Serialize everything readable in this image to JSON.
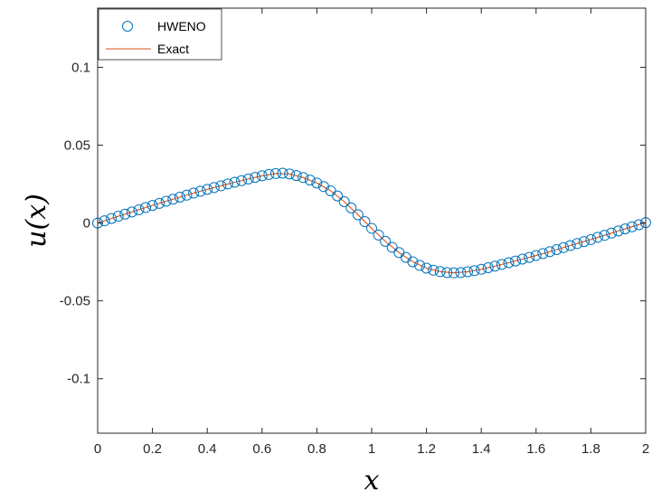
{
  "chart_data": {
    "type": "line",
    "xlabel": "x",
    "ylabel": "u(x)",
    "xlim": [
      0,
      2
    ],
    "ylim": [
      -0.135,
      0.138
    ],
    "grid": false,
    "legend_position": "top-left",
    "x_ticks": [
      0,
      0.2,
      0.4,
      0.6,
      0.8,
      1,
      1.2,
      1.4,
      1.6,
      1.8,
      2
    ],
    "x_tick_labels": [
      "0",
      "0.2",
      "0.4",
      "0.6",
      "0.8",
      "1",
      "1.2",
      "1.4",
      "1.6",
      "1.8",
      "2"
    ],
    "y_ticks": [
      0.1,
      0.05,
      0,
      -0.05,
      -0.1
    ],
    "y_tick_labels": [
      "0.1",
      "0.05",
      "0",
      "-0.05",
      "-0.1"
    ],
    "series": [
      {
        "name": "HWENO",
        "style": "markers",
        "marker": "circle",
        "color": "#0072BD",
        "x": [
          0,
          0.025,
          0.05,
          0.075,
          0.1,
          0.125,
          0.15,
          0.175,
          0.2,
          0.225,
          0.25,
          0.275,
          0.3,
          0.325,
          0.35,
          0.375,
          0.4,
          0.425,
          0.45,
          0.475,
          0.5,
          0.525,
          0.55,
          0.575,
          0.6,
          0.625,
          0.65,
          0.675,
          0.7,
          0.725,
          0.75,
          0.775,
          0.8,
          0.825,
          0.85,
          0.875,
          0.9,
          0.925,
          0.95,
          0.975,
          1,
          1.025,
          1.05,
          1.075,
          1.1,
          1.125,
          1.15,
          1.175,
          1.2,
          1.225,
          1.25,
          1.275,
          1.3,
          1.325,
          1.35,
          1.375,
          1.4,
          1.425,
          1.45,
          1.475,
          1.5,
          1.525,
          1.55,
          1.575,
          1.6,
          1.625,
          1.65,
          1.675,
          1.7,
          1.725,
          1.75,
          1.775,
          1.8,
          1.825,
          1.85,
          1.875,
          1.9,
          1.925,
          1.95,
          1.975,
          2
        ],
        "y": [
          0,
          0.0014,
          0.0029,
          0.0043,
          0.0057,
          0.0071,
          0.0085,
          0.0099,
          0.0113,
          0.0126,
          0.014,
          0.0153,
          0.0166,
          0.0179,
          0.0192,
          0.0204,
          0.0216,
          0.0228,
          0.0239,
          0.0251,
          0.0262,
          0.0272,
          0.0283,
          0.0293,
          0.0303,
          0.0312,
          0.0318,
          0.032,
          0.0315,
          0.0305,
          0.0292,
          0.0276,
          0.0257,
          0.0234,
          0.0207,
          0.0174,
          0.0137,
          0.0097,
          0.0053,
          0.0009,
          -0.0034,
          -0.0077,
          -0.0118,
          -0.0156,
          -0.019,
          -0.0221,
          -0.0249,
          -0.0272,
          -0.029,
          -0.0303,
          -0.0312,
          -0.0318,
          -0.032,
          -0.0318,
          -0.0313,
          -0.0306,
          -0.0297,
          -0.0287,
          -0.0277,
          -0.0266,
          -0.0255,
          -0.0244,
          -0.0232,
          -0.0221,
          -0.0209,
          -0.0196,
          -0.0184,
          -0.0171,
          -0.0158,
          -0.0145,
          -0.0132,
          -0.0119,
          -0.0106,
          -0.0092,
          -0.0079,
          -0.0065,
          -0.0051,
          -0.0038,
          -0.0024,
          -0.0011,
          0.0003
        ]
      },
      {
        "name": "Exact",
        "style": "line",
        "color": "#D95319",
        "x": [
          0,
          0.05,
          0.1,
          0.15,
          0.2,
          0.25,
          0.3,
          0.35,
          0.4,
          0.45,
          0.5,
          0.55,
          0.6,
          0.65,
          0.7,
          0.75,
          0.8,
          0.85,
          0.9,
          0.95,
          1,
          1.05,
          1.1,
          1.15,
          1.2,
          1.25,
          1.3,
          1.35,
          1.4,
          1.45,
          1.5,
          1.55,
          1.6,
          1.65,
          1.7,
          1.75,
          1.8,
          1.85,
          1.9,
          1.95,
          2
        ],
        "y": [
          0,
          0.0029,
          0.0057,
          0.0085,
          0.0113,
          0.014,
          0.0166,
          0.0192,
          0.0216,
          0.0239,
          0.0262,
          0.0283,
          0.0303,
          0.0318,
          0.0315,
          0.0292,
          0.0257,
          0.0207,
          0.0137,
          0.0053,
          -0.0034,
          -0.0118,
          -0.019,
          -0.0249,
          -0.029,
          -0.0312,
          -0.032,
          -0.0313,
          -0.0297,
          -0.0277,
          -0.0255,
          -0.0232,
          -0.0209,
          -0.0184,
          -0.0158,
          -0.0132,
          -0.0106,
          -0.0079,
          -0.0051,
          -0.0024,
          0.0003
        ]
      }
    ]
  }
}
